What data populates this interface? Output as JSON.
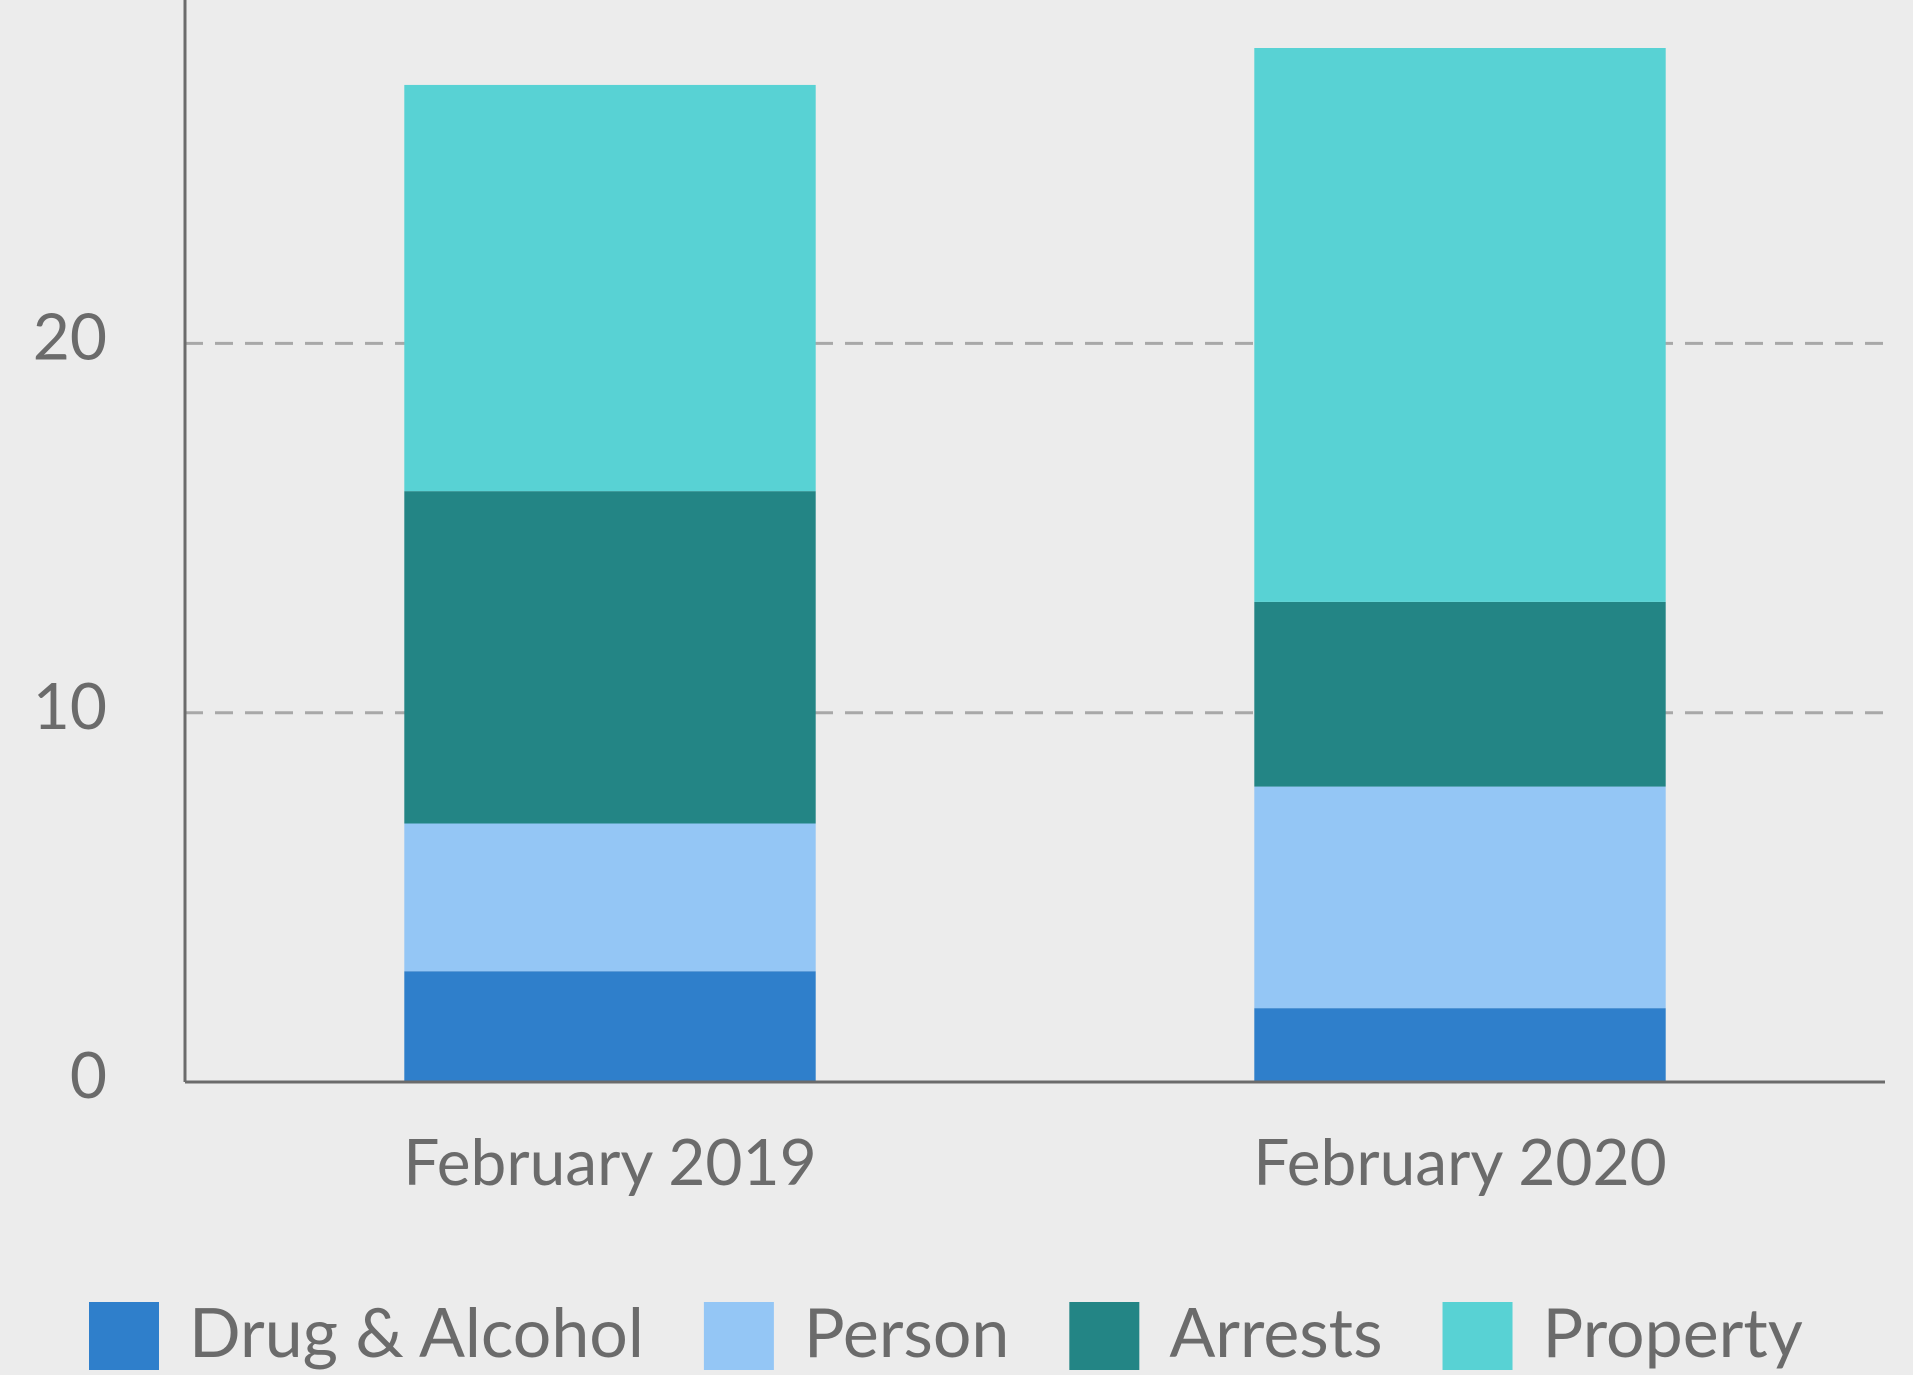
{
  "chart_data": {
    "type": "stacked_bar",
    "categories": [
      "February 2019",
      "February 2020"
    ],
    "series": [
      {
        "name": "Drug & Alcohol",
        "color": "#2f7fcb",
        "values": [
          3,
          2
        ]
      },
      {
        "name": "Person",
        "color": "#94c6f5",
        "values": [
          4,
          6
        ]
      },
      {
        "name": "Arrests",
        "color": "#238585",
        "values": [
          9,
          5
        ]
      },
      {
        "name": "Property",
        "color": "#58d2d4",
        "values": [
          11,
          15
        ]
      }
    ],
    "ylim": [
      0,
      29.3
    ],
    "yticks": [
      0,
      10,
      20
    ],
    "grid": true,
    "legend": "bottom"
  }
}
